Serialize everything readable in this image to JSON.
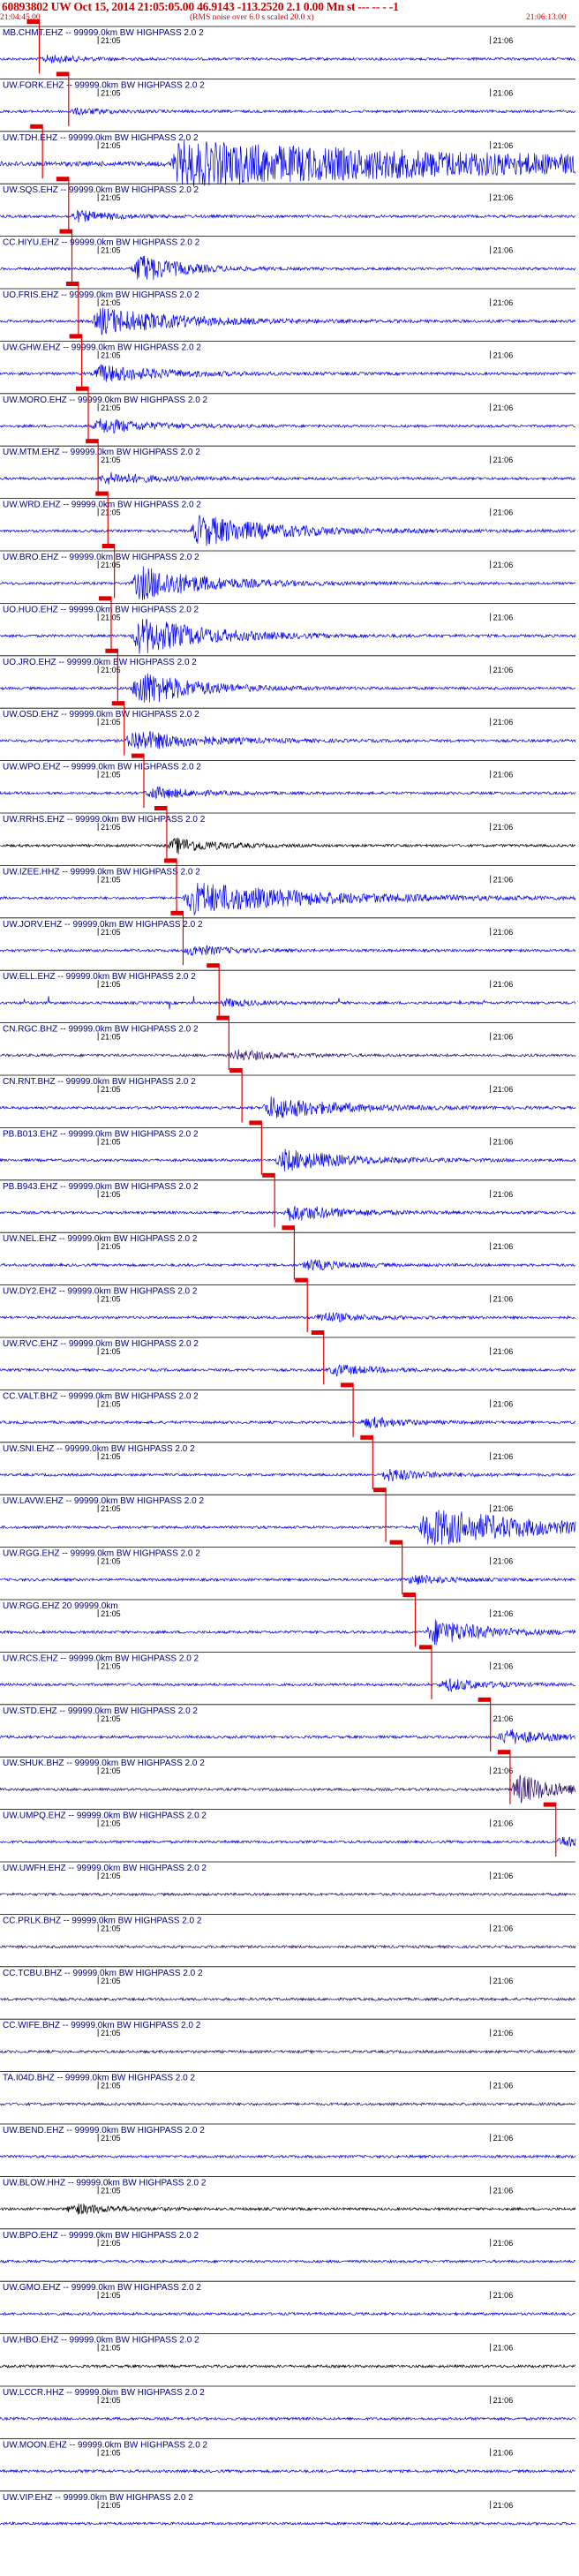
{
  "header": {
    "event_line": "60893802 UW Oct 15, 2014 21:05:05.00   46.9143 -113.2520  2.1 0.00 Mn st --- -- -  -1",
    "start_time": "21:04:45.00",
    "rms_note": "(RMS noise over 6.0 s scaled 20.0 x)",
    "end_time": "21:06:13.00"
  },
  "colors": {
    "trace_blue": "#0000ee",
    "trace_black": "#000000",
    "trace_purple": "#2a0a6e",
    "pick_red": "#dd0000",
    "text_red": "#cc0000"
  },
  "chart_data": {
    "type": "line",
    "title": "60893802 UW Oct 15, 2014 21:05:05.00   46.9143 -113.2520  2.1 0.00 Mn st --- -- -  -1",
    "x_start": "21:04:45.00",
    "x_end": "21:06:13.00",
    "tick_labels": [
      "21:05",
      "21:06"
    ],
    "tick_seconds": [
      15,
      75
    ],
    "xlim_seconds": [
      0,
      88
    ],
    "traces": [
      {
        "label": "MB.CHMT.EHZ -- 99999.0km BW  HIGHPASS  2.0  2",
        "color": "blue",
        "pick_s": 6.0,
        "event_s": 6.0,
        "amp": 0.22,
        "dur": 5
      },
      {
        "label": "UW.FORK.EHZ -- 99999.0km BW  HIGHPASS  2.0  2",
        "color": "blue",
        "pick_s": 10.5,
        "event_s": 10.5,
        "amp": 0.18,
        "dur": 5
      },
      {
        "label": "UW.TDH.EHZ -- 99999.0km BW  HIGHPASS  2.0  2",
        "color": "blue",
        "pick_s": 6.5,
        "event_s": 26,
        "amp": 1.0,
        "dur": 60,
        "noisy": true
      },
      {
        "label": "UW.SQS.EHZ -- 99999.0km BW  HIGHPASS  2.0  2",
        "color": "blue",
        "pick_s": 10.5,
        "event_s": 10.5,
        "amp": 0.3,
        "dur": 6
      },
      {
        "label": "CC.HIYU.EHZ -- 99999.0km BW  HIGHPASS  2.0  2",
        "color": "blue",
        "pick_s": 11.0,
        "event_s": 20,
        "amp": 0.85,
        "dur": 6
      },
      {
        "label": "UO.FRIS.EHZ -- 99999.0km BW  HIGHPASS  2.0  2",
        "color": "blue",
        "pick_s": 12.0,
        "event_s": 14,
        "amp": 0.7,
        "dur": 12
      },
      {
        "label": "UW.GHW.EHZ -- 99999.0km BW  HIGHPASS  2.0  2",
        "color": "blue",
        "pick_s": 12.5,
        "event_s": 14,
        "amp": 0.45,
        "dur": 10
      },
      {
        "label": "UW.MORO.EHZ -- 99999.0km BW  HIGHPASS  2.0  2",
        "color": "blue",
        "pick_s": 13.5,
        "event_s": 14,
        "amp": 0.4,
        "dur": 8
      },
      {
        "label": "UW.MTM.EHZ -- 99999.0km BW  HIGHPASS  2.0  2",
        "color": "blue",
        "pick_s": 15.0,
        "event_s": 15,
        "amp": 0.3,
        "dur": 8
      },
      {
        "label": "UW.WRD.EHZ -- 99999.0km BW  HIGHPASS  2.0  2",
        "color": "blue",
        "pick_s": 16.5,
        "event_s": 29,
        "amp": 0.8,
        "dur": 12
      },
      {
        "label": "UW.BRO.EHZ -- 99999.0km BW  HIGHPASS  2.0  2",
        "color": "blue",
        "pick_s": 17.5,
        "event_s": 20,
        "amp": 0.9,
        "dur": 10
      },
      {
        "label": "UO.HUO.EHZ -- 99999.0km BW  HIGHPASS  2.0  2",
        "color": "blue",
        "pick_s": 17.0,
        "event_s": 20,
        "amp": 1.0,
        "dur": 10
      },
      {
        "label": "UO.JRO.EHZ -- 99999.0km BW  HIGHPASS  2.0  2",
        "color": "blue",
        "pick_s": 18.0,
        "event_s": 20,
        "amp": 1.0,
        "dur": 8
      },
      {
        "label": "UW.OSD.EHZ -- 99999.0km BW  HIGHPASS  2.0  2",
        "color": "blue",
        "pick_s": 19.0,
        "event_s": 19,
        "amp": 0.55,
        "dur": 10
      },
      {
        "label": "UW.WPO.EHZ -- 99999.0km BW  HIGHPASS  2.0  2",
        "color": "blue",
        "pick_s": 22.0,
        "event_s": 22,
        "amp": 0.35,
        "dur": 6
      },
      {
        "label": "UW.RRHS.EHZ -- 99999.0km BW  HIGHPASS  2.0  2",
        "color": "black",
        "pick_s": 25.5,
        "event_s": 25.5,
        "amp": 0.45,
        "dur": 6
      },
      {
        "label": "UW.IZEE.HHZ -- 99999.0km BW  HIGHPASS  2.0  2",
        "color": "blue",
        "pick_s": 27.0,
        "event_s": 28,
        "amp": 0.8,
        "dur": 18
      },
      {
        "label": "UW.JORV.EHZ -- 99999.0km BW  HIGHPASS  2.0  2",
        "color": "blue",
        "pick_s": 28.0,
        "event_s": 28,
        "amp": 0.3,
        "dur": 6
      },
      {
        "label": "UW.ELL.EHZ -- 99999.0km BW  HIGHPASS  2.0  2",
        "color": "blue",
        "pick_s": 33.5,
        "event_s": 33.5,
        "amp": 0.25,
        "dur": 4,
        "spiky": true
      },
      {
        "label": "CN.RGC.BHZ -- 99999.0km BW  HIGHPASS  2.0  2",
        "color": "purple",
        "pick_s": 35.0,
        "event_s": 35,
        "amp": 0.3,
        "dur": 6
      },
      {
        "label": "CN.RNT.BHZ -- 99999.0km BW  HIGHPASS  2.0  2",
        "color": "blue",
        "pick_s": 37.0,
        "event_s": 40,
        "amp": 0.6,
        "dur": 10
      },
      {
        "label": "PB.B013.EHZ -- 99999.0km BW  HIGHPASS  2.0  2",
        "color": "blue",
        "pick_s": 40.0,
        "event_s": 42,
        "amp": 0.55,
        "dur": 10
      },
      {
        "label": "PB.B943.EHZ -- 99999.0km BW  HIGHPASS  2.0  2",
        "color": "blue",
        "pick_s": 42.0,
        "event_s": 43,
        "amp": 0.45,
        "dur": 8
      },
      {
        "label": "UW.NEL.EHZ -- 99999.0km BW  HIGHPASS  2.0  2",
        "color": "blue",
        "pick_s": 45.0,
        "event_s": 46,
        "amp": 0.3,
        "dur": 6
      },
      {
        "label": "UW.DY2.EHZ -- 99999.0km BW  HIGHPASS  2.0  2",
        "color": "blue",
        "pick_s": 47.0,
        "event_s": 48,
        "amp": 0.3,
        "dur": 6
      },
      {
        "label": "UW.RVC.EHZ -- 99999.0km BW  HIGHPASS  2.0  2",
        "color": "blue",
        "pick_s": 49.5,
        "event_s": 50,
        "amp": 0.3,
        "dur": 6
      },
      {
        "label": "CC.VALT.BHZ -- 99999.0km BW  HIGHPASS  2.0  2",
        "color": "blue",
        "pick_s": 54.0,
        "event_s": 55,
        "amp": 0.3,
        "dur": 6
      },
      {
        "label": "UW.SNI.EHZ -- 99999.0km BW  HIGHPASS  2.0  2",
        "color": "blue",
        "pick_s": 57.0,
        "event_s": 58,
        "amp": 0.35,
        "dur": 6
      },
      {
        "label": "UW.LAVW.EHZ -- 99999.0km BW  HIGHPASS  2.0  2",
        "color": "blue",
        "pick_s": 59.0,
        "event_s": 64,
        "amp": 1.0,
        "dur": 16
      },
      {
        "label": "UW.RGG.EHZ -- 99999.0km BW  HIGHPASS  2.0  2",
        "color": "blue",
        "pick_s": 61.5,
        "event_s": 62,
        "amp": 0.3,
        "dur": 5
      },
      {
        "label": "UW.RGG.EHZ 20 99999.0km",
        "color": "blue",
        "pick_s": 63.5,
        "event_s": 65,
        "amp": 0.7,
        "dur": 8
      },
      {
        "label": "UW.RCS.EHZ -- 99999.0km BW  HIGHPASS  2.0  2",
        "color": "blue",
        "pick_s": 66.0,
        "event_s": 67,
        "amp": 0.35,
        "dur": 6
      },
      {
        "label": "UW.STD.EHZ -- 99999.0km BW  HIGHPASS  2.0  2",
        "color": "blue",
        "pick_s": 75.0,
        "event_s": 76,
        "amp": 0.45,
        "dur": 6
      },
      {
        "label": "UW.SHUK.BHZ -- 99999.0km BW  HIGHPASS  2.0  2",
        "color": "purple",
        "pick_s": 78.0,
        "event_s": 78,
        "amp": 0.85,
        "dur": 6
      },
      {
        "label": "UW.UMPQ.EHZ -- 99999.0km BW  HIGHPASS  2.0  2",
        "color": "blue",
        "pick_s": 85.0,
        "event_s": 85,
        "amp": 0.4,
        "dur": 3
      },
      {
        "label": "UW.UWFH.EHZ -- 99999.0km BW  HIGHPASS  2.0  2",
        "color": "purple",
        "pick_s": null,
        "event_s": null,
        "amp": 0,
        "dur": 0
      },
      {
        "label": "CC.PRLK.BHZ -- 99999.0km BW  HIGHPASS  2.0  2",
        "color": "purple",
        "pick_s": null,
        "event_s": null,
        "amp": 0,
        "dur": 0
      },
      {
        "label": "CC.TCBU.BHZ -- 99999.0km BW  HIGHPASS  2.0  2",
        "color": "purple",
        "pick_s": null,
        "event_s": null,
        "amp": 0,
        "dur": 0
      },
      {
        "label": "CC.WIFE.BHZ -- 99999.0km BW  HIGHPASS  2.0  2",
        "color": "purple",
        "pick_s": null,
        "event_s": null,
        "amp": 0,
        "dur": 0
      },
      {
        "label": "TA.I04D.BHZ -- 99999.0km BW  HIGHPASS  2.0  2",
        "color": "purple",
        "pick_s": null,
        "event_s": null,
        "amp": 0,
        "dur": 0
      },
      {
        "label": "UW.BEND.EHZ -- 99999.0km BW  HIGHPASS  2.0  2",
        "color": "blue",
        "pick_s": null,
        "event_s": null,
        "amp": 0,
        "dur": 0
      },
      {
        "label": "UW.BLOW.HHZ -- 99999.0km BW  HIGHPASS  2.0  2",
        "color": "black",
        "pick_s": null,
        "event_s": 10,
        "amp": 0.3,
        "dur": 6
      },
      {
        "label": "UW.BPO.EHZ -- 99999.0km BW  HIGHPASS  2.0  2",
        "color": "blue",
        "pick_s": null,
        "event_s": null,
        "amp": 0,
        "dur": 0
      },
      {
        "label": "UW.GMO.EHZ -- 99999.0km BW  HIGHPASS  2.0  2",
        "color": "blue",
        "pick_s": null,
        "event_s": null,
        "amp": 0,
        "dur": 0
      },
      {
        "label": "UW.HBO.EHZ -- 99999.0km BW  HIGHPASS  2.0  2",
        "color": "black",
        "pick_s": null,
        "event_s": null,
        "amp": 0,
        "dur": 0
      },
      {
        "label": "UW.LCCR.HHZ -- 99999.0km BW  HIGHPASS  2.0  2",
        "color": "blue",
        "pick_s": null,
        "event_s": null,
        "amp": 0,
        "dur": 0
      },
      {
        "label": "UW.MOON.EHZ -- 99999.0km BW  HIGHPASS  2.0  2",
        "color": "blue",
        "pick_s": null,
        "event_s": null,
        "amp": 0,
        "dur": 0
      },
      {
        "label": "UW.VIP.EHZ -- 99999.0km BW  HIGHPASS  2.0  2",
        "color": "blue",
        "pick_s": null,
        "event_s": null,
        "amp": 0,
        "dur": 0
      }
    ]
  }
}
